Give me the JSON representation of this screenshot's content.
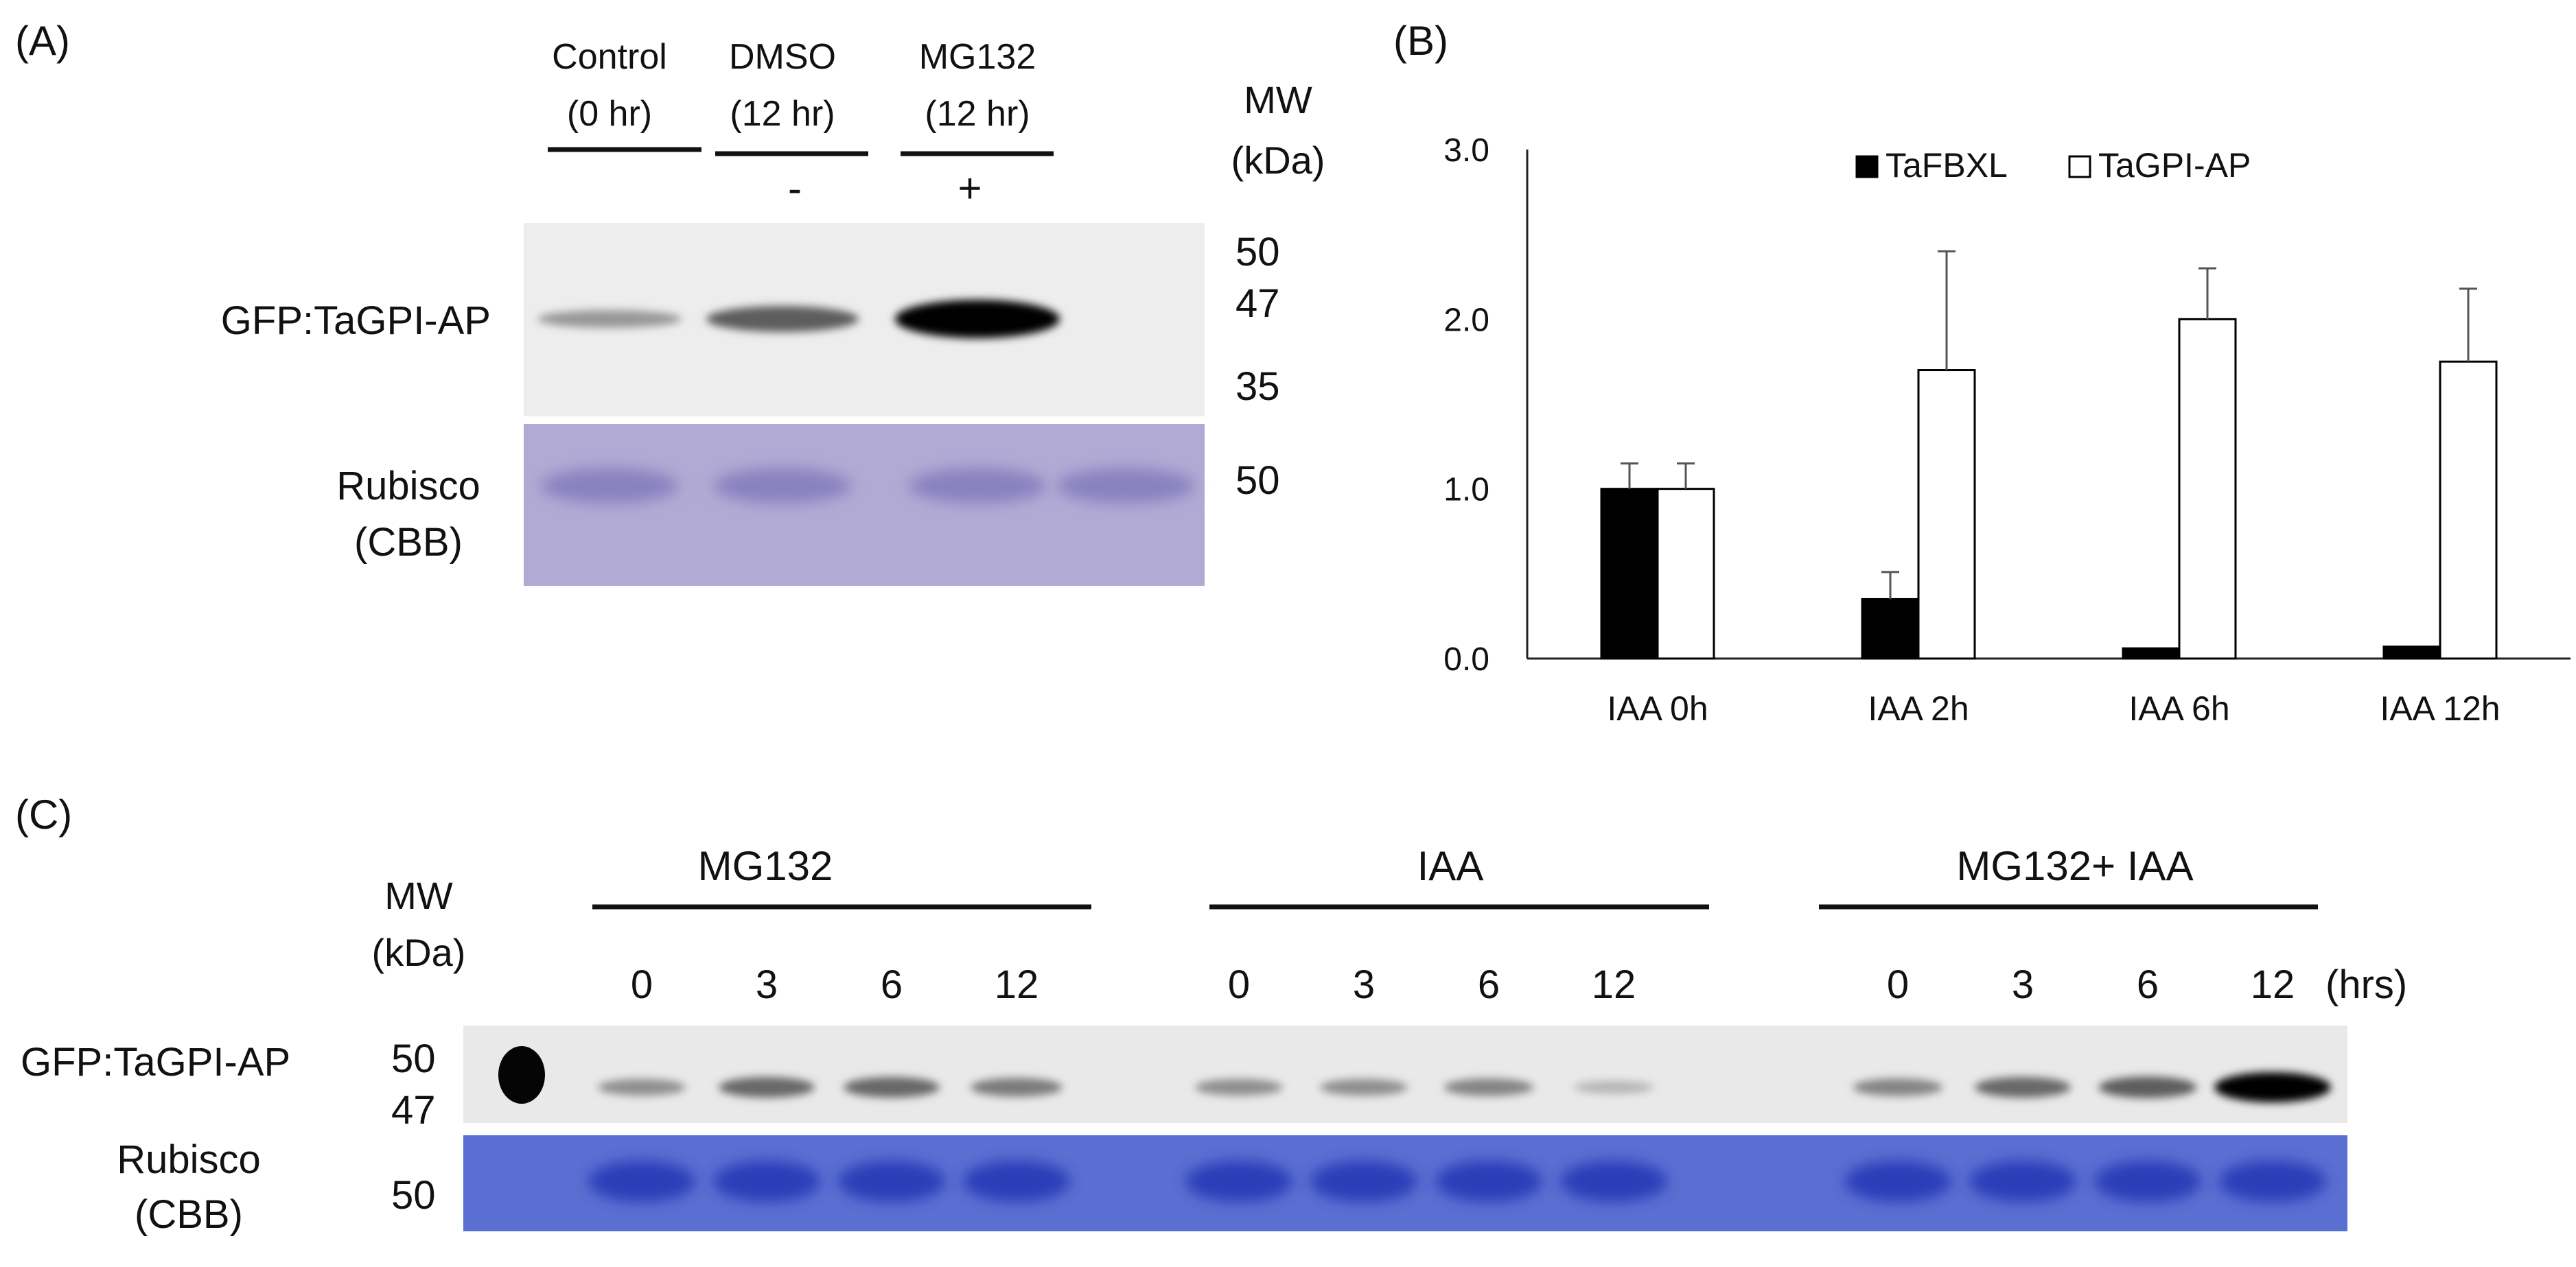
{
  "panels": {
    "a": {
      "letter": "(A)",
      "lanes": [
        {
          "name": "Control",
          "time": "(0 hr)",
          "mg132": ""
        },
        {
          "name": "DMSO",
          "time": "(12 hr)",
          "mg132": "-"
        },
        {
          "name": "MG132",
          "time": "(12 hr)",
          "mg132": "+"
        }
      ],
      "mw_title": [
        "MW",
        "(kDa)"
      ],
      "mw_ticks": [
        "50",
        "47",
        "35"
      ],
      "rubisco_mw": "50",
      "row_label_blot": "GFP:TaGPI-AP",
      "row_label_cbb": [
        "Rubisco",
        "(CBB)"
      ],
      "band_intensity": [
        0.25,
        0.55,
        1.0
      ]
    },
    "b": {
      "letter": "(B)"
    },
    "c": {
      "letter": "(C)",
      "groups": [
        {
          "name": "MG132",
          "times": [
            "0",
            "3",
            "6",
            "12"
          ],
          "intensity": [
            0.3,
            0.5,
            0.5,
            0.4
          ]
        },
        {
          "name": "IAA",
          "times": [
            "0",
            "3",
            "6",
            "12"
          ],
          "intensity": [
            0.3,
            0.3,
            0.35,
            0.1
          ]
        },
        {
          "name": "MG132+ IAA",
          "times": [
            "0",
            "3",
            "6",
            "12"
          ],
          "intensity": [
            0.35,
            0.5,
            0.55,
            1.0
          ]
        }
      ],
      "time_unit": "(hrs)",
      "mw_title": [
        "MW",
        "(kDa)"
      ],
      "mw_ticks": [
        "50",
        "47"
      ],
      "rubisco_mw": "50",
      "row_label_blot": "GFP:TaGPI-AP",
      "row_label_cbb": [
        "Rubisco",
        "(CBB)"
      ]
    }
  },
  "chart_data": {
    "type": "bar",
    "categories": [
      "IAA 0h",
      "IAA 2h",
      "IAA 6h",
      "IAA 12h"
    ],
    "series": [
      {
        "name": "TaFBXL",
        "values": [
          1.0,
          0.35,
          0.06,
          0.07
        ],
        "errors": [
          0.15,
          0.16,
          0.0,
          0.0
        ],
        "color": "#000000"
      },
      {
        "name": "TaGPI-AP",
        "values": [
          1.0,
          1.7,
          2.0,
          1.75
        ],
        "errors": [
          0.15,
          0.7,
          0.3,
          0.43
        ],
        "color": "#ffffff"
      }
    ],
    "ylim": [
      0,
      3.0
    ],
    "yticks": [
      "0.0",
      "1.0",
      "2.0",
      "3.0"
    ],
    "ytick_values": [
      0,
      1,
      2,
      3
    ],
    "legend_position": "top",
    "grid": false,
    "xlabel": "",
    "ylabel": ""
  }
}
